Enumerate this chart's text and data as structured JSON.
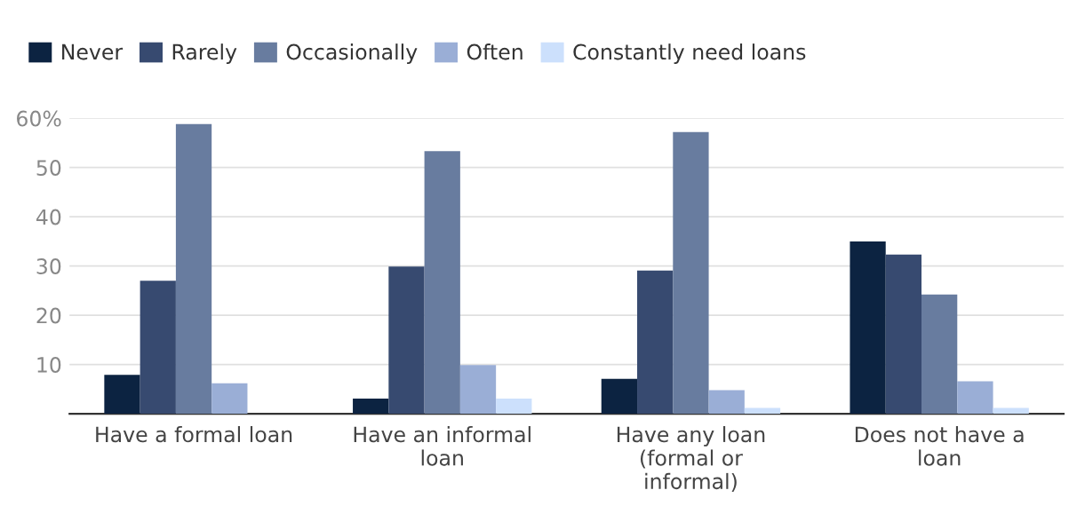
{
  "chart_data": {
    "type": "bar",
    "categories": [
      "Have a formal loan",
      "Have an informal\nloan",
      "Have any loan\n(formal or\ninformal)",
      "Does not have a\nloan"
    ],
    "series": [
      {
        "name": "Never",
        "color": "#0c2341",
        "values": [
          7.9,
          3.1,
          7.1,
          35.0
        ]
      },
      {
        "name": "Rarely",
        "color": "#374a70",
        "values": [
          27.0,
          29.9,
          29.1,
          32.3
        ]
      },
      {
        "name": "Occasionally",
        "color": "#687c9f",
        "values": [
          58.8,
          53.3,
          57.2,
          24.2
        ]
      },
      {
        "name": "Often",
        "color": "#9aaed6",
        "values": [
          6.2,
          9.9,
          4.8,
          6.6
        ]
      },
      {
        "name": "Constantly need loans",
        "color": "#cce0fc",
        "values": [
          null,
          3.1,
          1.2,
          1.2
        ]
      }
    ],
    "ylim": [
      0,
      60
    ],
    "yticks": [
      {
        "value": 0,
        "label": null
      },
      10,
      20,
      30,
      40,
      50,
      {
        "value": 60,
        "label": "60%"
      }
    ],
    "grid": "y",
    "legend": "top left"
  }
}
